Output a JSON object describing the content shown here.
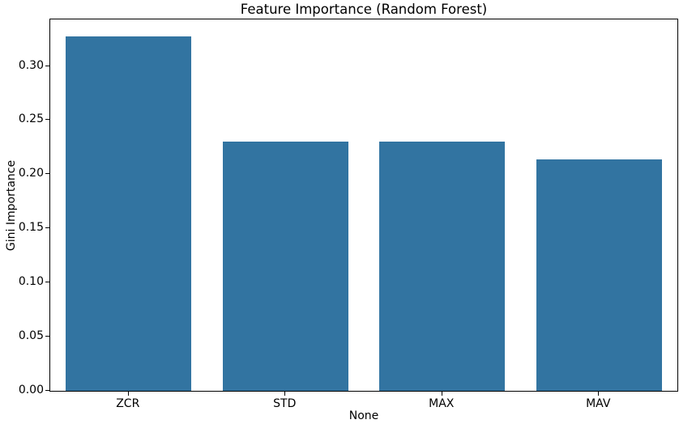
{
  "chart_data": {
    "type": "bar",
    "title": "Feature Importance (Random Forest)",
    "xlabel": "None",
    "ylabel": "Gini Importance",
    "categories": [
      "ZCR",
      "STD",
      "MAX",
      "MAV"
    ],
    "values": [
      0.327,
      0.23,
      0.23,
      0.214
    ],
    "ylim": [
      0,
      0.343
    ],
    "yticks": [
      0.0,
      0.05,
      0.1,
      0.15,
      0.2,
      0.25,
      0.3
    ],
    "ytick_labels": [
      "0.00",
      "0.05",
      "0.10",
      "0.15",
      "0.20",
      "0.25",
      "0.30"
    ],
    "bar_color": "#3274a1",
    "bar_width_fraction": 0.8,
    "grid": false,
    "legend": "none",
    "spine_color": "#000000",
    "background_color": "#ffffff"
  }
}
